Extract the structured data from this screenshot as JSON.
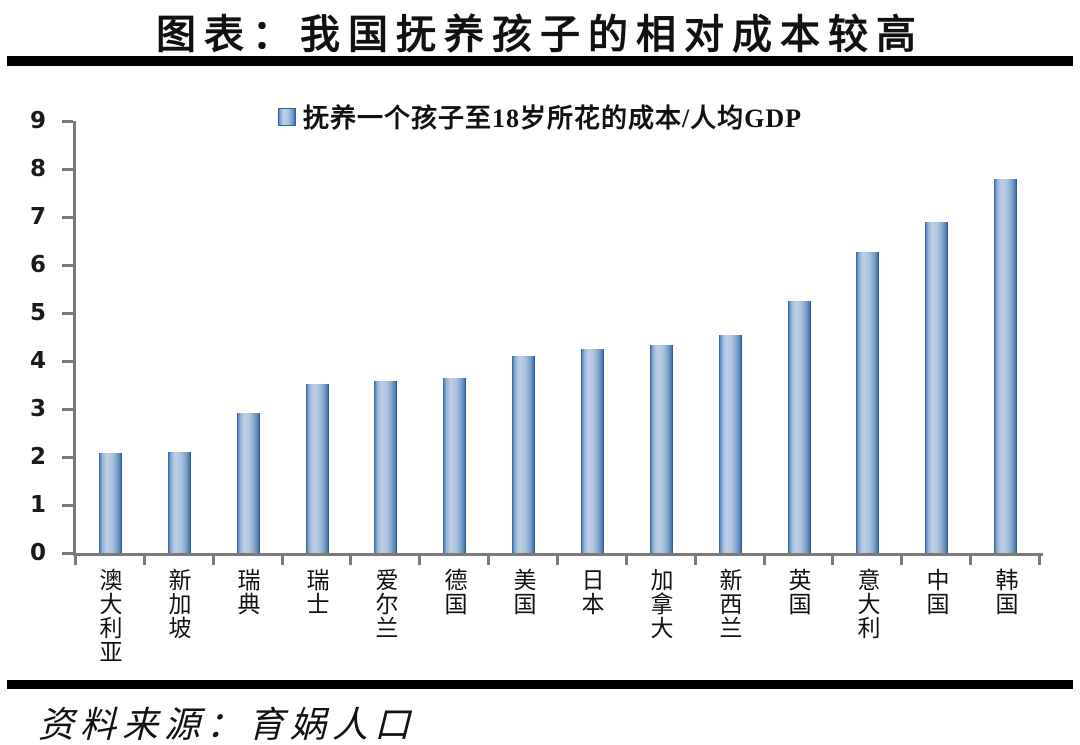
{
  "header": {
    "title": "图表：我国抚养孩子的相对成本较高"
  },
  "legend": {
    "label": "抚养一个孩子至18岁所花的成本/人均GDP"
  },
  "source": {
    "text": "资料来源：育娲人口"
  },
  "colors": {
    "bar_light": "#bdd0e7",
    "bar_dark": "#416fa5",
    "bar_edge": "#35619b",
    "axis": "#7a7a7a",
    "divider": "#000000",
    "text": "#111111"
  },
  "chart_data": {
    "type": "bar",
    "title": "图表：我国抚养孩子的相对成本较高",
    "legend_entries": [
      "抚养一个孩子至18岁所花的成本/人均GDP"
    ],
    "legend_position": "top-center",
    "categories": [
      "澳大利亚",
      "新加坡",
      "瑞典",
      "瑞士",
      "爱尔兰",
      "德国",
      "美国",
      "日本",
      "加拿大",
      "新西兰",
      "英国",
      "意大利",
      "中国",
      "韩国"
    ],
    "values": [
      2.08,
      2.1,
      2.91,
      3.52,
      3.58,
      3.64,
      4.11,
      4.26,
      4.34,
      4.55,
      5.25,
      6.28,
      6.9,
      7.79
    ],
    "xlabel": "",
    "ylabel": "",
    "ylim": [
      0,
      9
    ],
    "ytick_step": 1,
    "yticks": [
      0,
      1,
      2,
      3,
      4,
      5,
      6,
      7,
      8,
      9
    ],
    "grid": false
  }
}
